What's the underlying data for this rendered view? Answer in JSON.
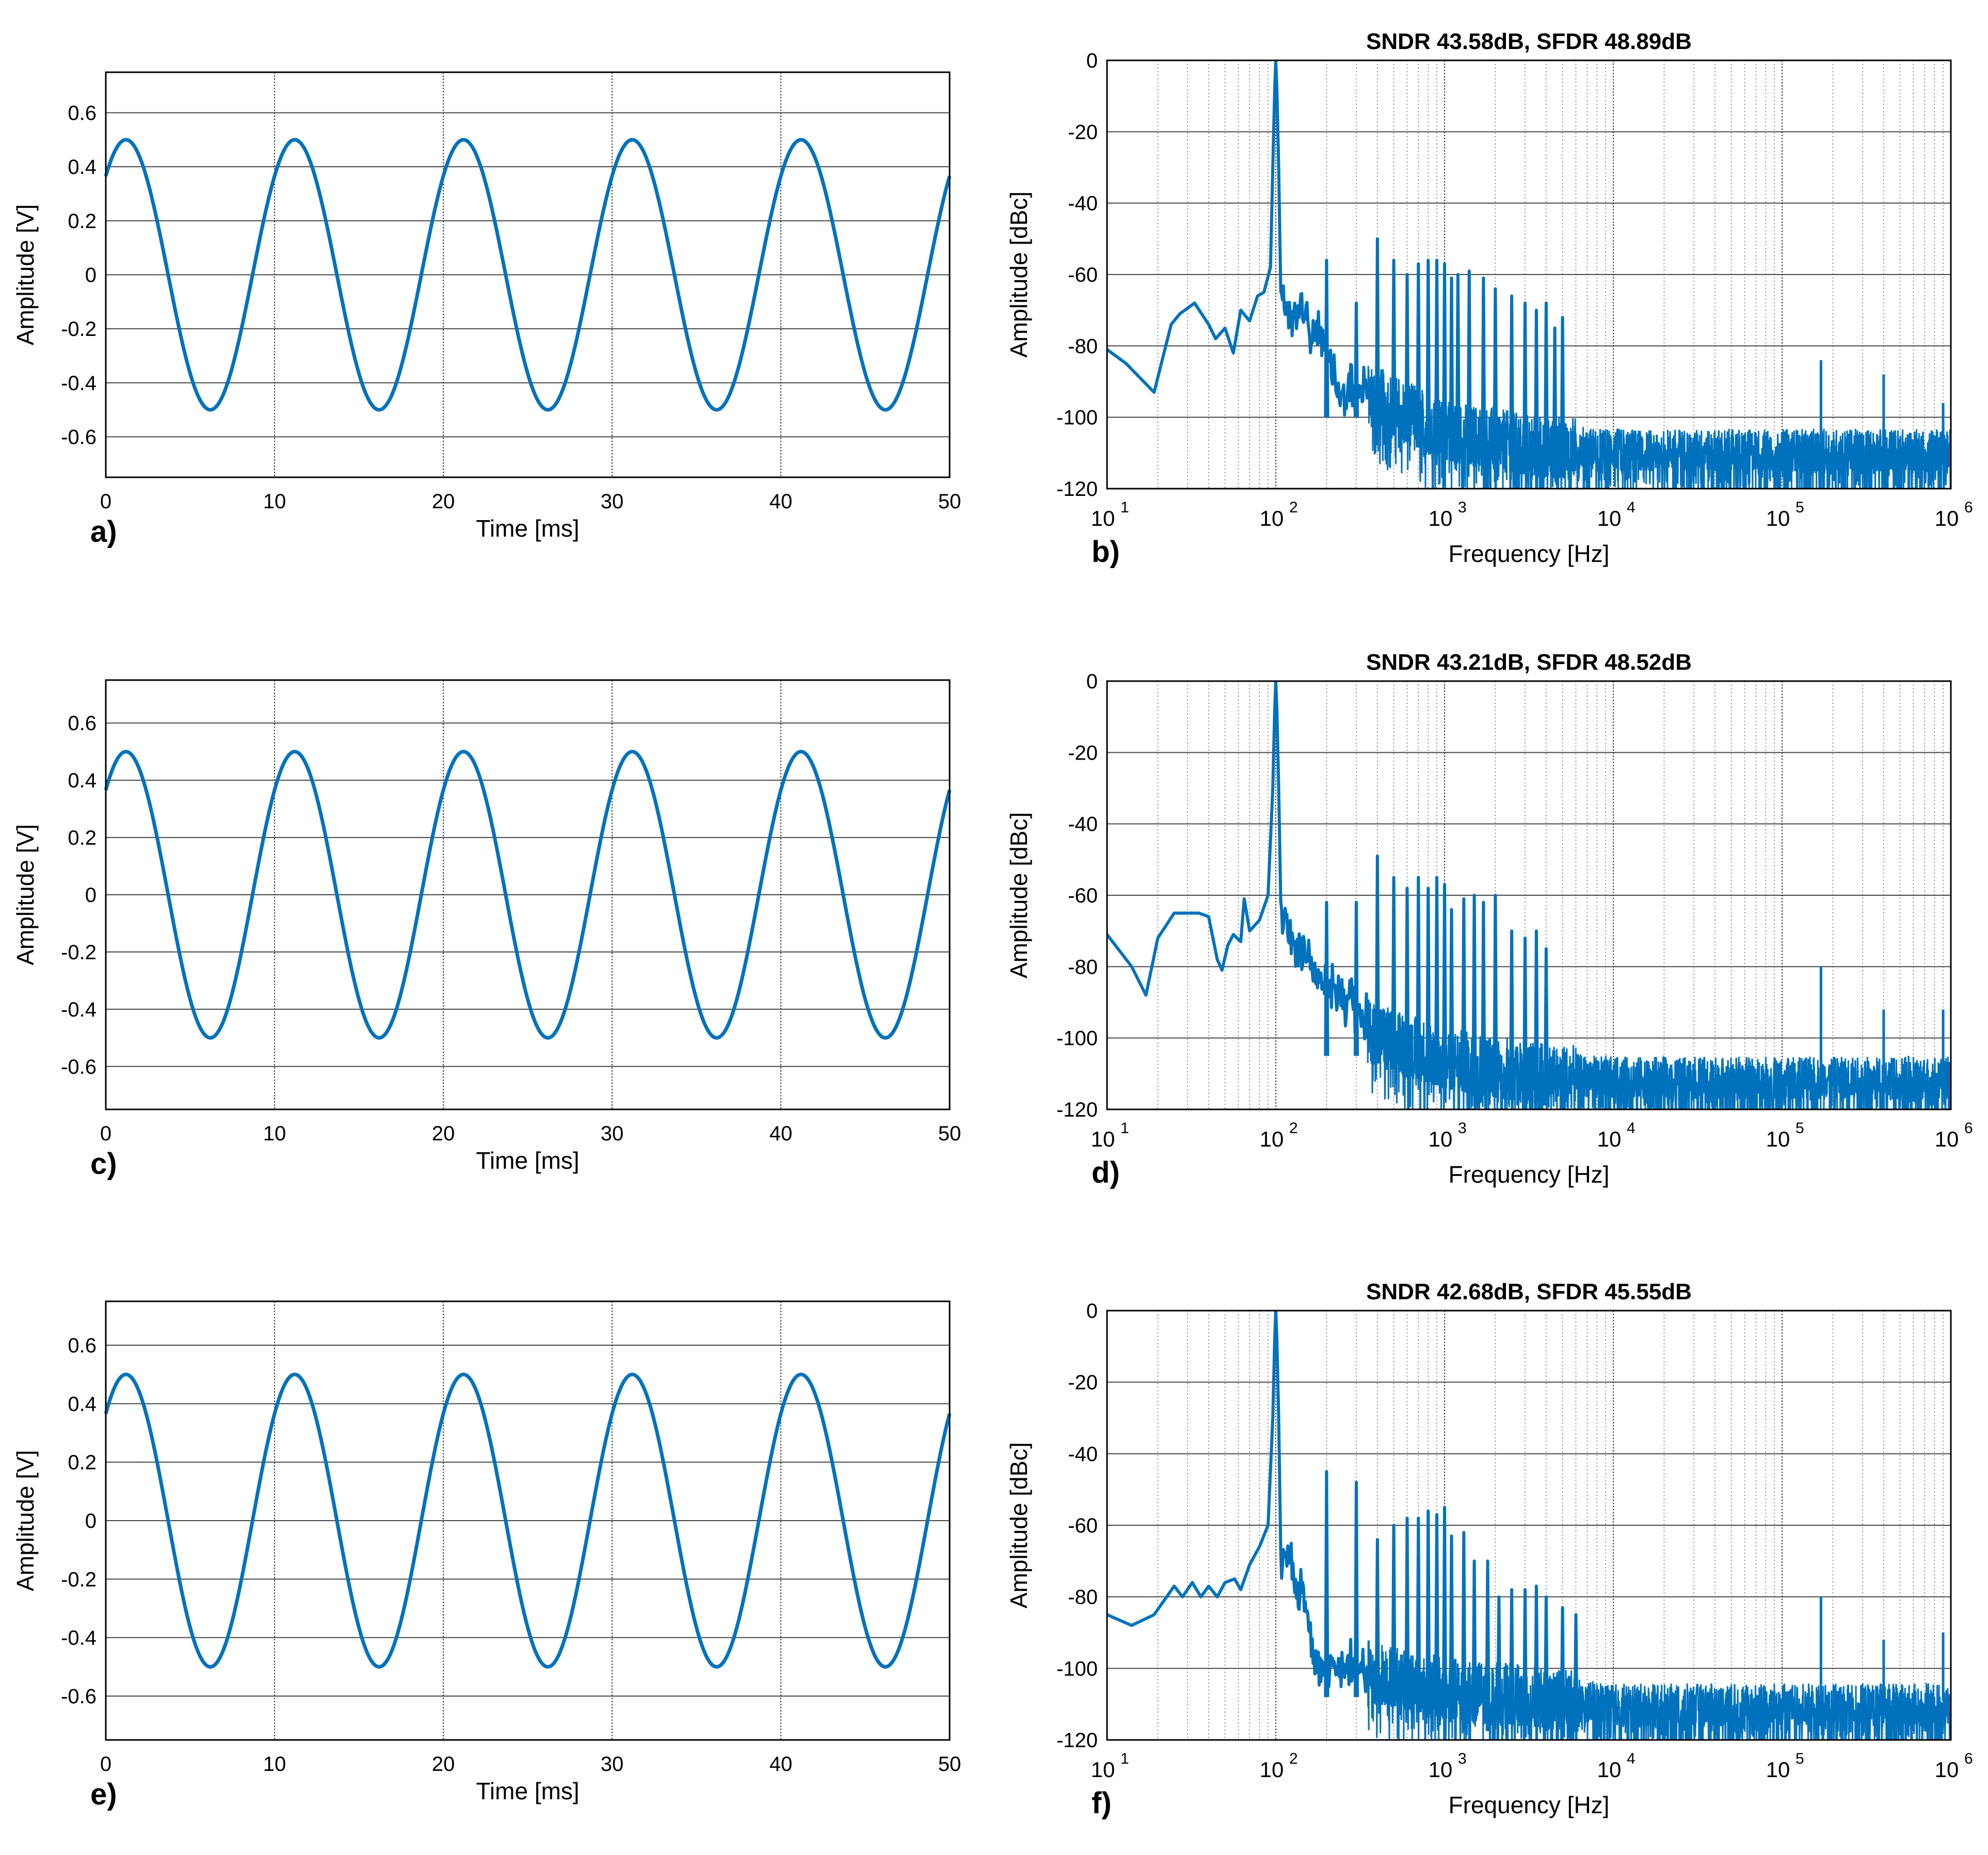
{
  "colors": {
    "line": "#0072bd",
    "grid": "#262626",
    "axis": "#000000",
    "text": "#000000"
  },
  "chart_data": [
    {
      "panel": "a)",
      "type": "line",
      "title": "",
      "xlabel": "Time [ms]",
      "ylabel": "Amplitude [V]",
      "xlim": [
        0,
        50
      ],
      "ylim": [
        -0.75,
        0.75
      ],
      "xticks": [
        0,
        10,
        20,
        30,
        40,
        50
      ],
      "xticklabels": [
        "0",
        "10",
        "20",
        "30",
        "40",
        "50"
      ],
      "yticks": [
        0.6,
        0.4,
        0.2,
        0,
        -0.2,
        -0.4,
        -0.6
      ],
      "yticklabels": [
        "0.6",
        "0.4",
        "0.2",
        "0",
        "-0.2",
        "-0.4",
        "-0.6"
      ],
      "series": [
        {
          "name": "sine",
          "amplitude": 0.5,
          "frequency_hz": 100,
          "phase_deg": 47,
          "x_range_ms": [
            0,
            50
          ]
        }
      ]
    },
    {
      "panel": "b)",
      "type": "line",
      "title": "SNDR 43.58dB, SFDR 48.89dB",
      "xlabel": "Frequency [Hz]",
      "ylabel": "Amplitude [dBc]",
      "xscale": "log",
      "xlim": [
        10,
        1000000
      ],
      "ylim": [
        -120,
        0
      ],
      "xticks": [
        10,
        100,
        1000,
        10000,
        100000,
        1000000
      ],
      "xticklabels": [
        [
          "10",
          "1"
        ],
        [
          "10",
          "2"
        ],
        [
          "10",
          "3"
        ],
        [
          "10",
          "4"
        ],
        [
          "10",
          "5"
        ],
        [
          "10",
          "6"
        ]
      ],
      "yticks": [
        0,
        -20,
        -40,
        -60,
        -80,
        -100,
        -120
      ],
      "yticklabels": [
        "0",
        "-20",
        "-40",
        "-60",
        "-80",
        "-100",
        "-120"
      ],
      "series": [
        {
          "name": "spectrum",
          "low": [
            [
              10,
              -81
            ],
            [
              13,
              -85
            ],
            [
              19,
              -93
            ],
            [
              24,
              -74
            ],
            [
              27,
              -71
            ],
            [
              33,
              -68
            ],
            [
              40,
              -74
            ],
            [
              44,
              -78
            ],
            [
              50,
              -75
            ],
            [
              56,
              -82
            ],
            [
              62,
              -70
            ],
            [
              70,
              -73
            ],
            [
              78,
              -66
            ],
            [
              85,
              -65
            ],
            [
              93,
              -58
            ]
          ],
          "carrier": [
            [
              100,
              0
            ]
          ],
          "shoulder": [
            [
              107,
              -58
            ],
            [
              115,
              -65
            ],
            [
              125,
              -68
            ],
            [
              140,
              -63
            ],
            [
              160,
              -74
            ],
            [
              180,
              -70
            ],
            [
              240,
              -90
            ],
            [
              350,
              -88
            ]
          ],
          "harmonics": [
            [
              200,
              -56
            ],
            [
              300,
              -68
            ],
            [
              400,
              -50
            ],
            [
              500,
              -56
            ],
            [
              600,
              -60
            ],
            [
              700,
              -57
            ],
            [
              800,
              -56
            ],
            [
              900,
              -56
            ],
            [
              1000,
              -57
            ],
            [
              1100,
              -61
            ],
            [
              1200,
              -60
            ],
            [
              1400,
              -59
            ],
            [
              1700,
              -61
            ],
            [
              2000,
              -64
            ],
            [
              2500,
              -66
            ],
            [
              3000,
              -68
            ],
            [
              3500,
              -70
            ],
            [
              4000,
              -68
            ],
            [
              4500,
              -75
            ],
            [
              5000,
              -72
            ]
          ],
          "spurs": [
            [
              170000,
              -84
            ],
            [
              400000,
              -88
            ],
            [
              900000,
              -96
            ]
          ],
          "noise_floor": [
            [
              300,
              -90
            ],
            [
              1000,
              -102
            ],
            [
              3000,
              -106
            ],
            [
              10000,
              -108
            ],
            [
              1000000,
              -108
            ]
          ]
        }
      ]
    },
    {
      "panel": "c)",
      "type": "line",
      "title": "",
      "xlabel": "Time [ms]",
      "ylabel": "Amplitude [V]",
      "xlim": [
        0,
        50
      ],
      "ylim": [
        -0.75,
        0.75
      ],
      "xticks": [
        0,
        10,
        20,
        30,
        40,
        50
      ],
      "xticklabels": [
        "0",
        "10",
        "20",
        "30",
        "40",
        "50"
      ],
      "yticks": [
        0.6,
        0.4,
        0.2,
        0,
        -0.2,
        -0.4,
        -0.6
      ],
      "yticklabels": [
        "0.6",
        "0.4",
        "0.2",
        "0",
        "-0.2",
        "-0.4",
        "-0.6"
      ],
      "series": [
        {
          "name": "sine",
          "amplitude": 0.5,
          "frequency_hz": 100,
          "phase_deg": 47,
          "x_range_ms": [
            0,
            50
          ]
        }
      ]
    },
    {
      "panel": "d)",
      "type": "line",
      "title": "SNDR 43.21dB, SFDR 48.52dB",
      "xlabel": "Frequency [Hz]",
      "ylabel": "Amplitude [dBc]",
      "xscale": "log",
      "xlim": [
        10,
        1000000
      ],
      "ylim": [
        -120,
        0
      ],
      "xticks": [
        10,
        100,
        1000,
        10000,
        100000,
        1000000
      ],
      "xticklabels": [
        [
          "10",
          "1"
        ],
        [
          "10",
          "2"
        ],
        [
          "10",
          "3"
        ],
        [
          "10",
          "4"
        ],
        [
          "10",
          "5"
        ],
        [
          "10",
          "6"
        ]
      ],
      "yticks": [
        0,
        -20,
        -40,
        -60,
        -80,
        -100,
        -120
      ],
      "yticklabels": [
        "0",
        "-20",
        "-40",
        "-60",
        "-80",
        "-100",
        "-120"
      ],
      "series": [
        {
          "name": "spectrum",
          "low": [
            [
              10,
              -71
            ],
            [
              14,
              -80
            ],
            [
              17,
              -88
            ],
            [
              20,
              -72
            ],
            [
              25,
              -65
            ],
            [
              30,
              -65
            ],
            [
              35,
              -65
            ],
            [
              40,
              -66
            ],
            [
              45,
              -78
            ],
            [
              48,
              -81
            ],
            [
              52,
              -74
            ],
            [
              56,
              -71
            ],
            [
              62,
              -73
            ],
            [
              65,
              -61
            ],
            [
              70,
              -70
            ],
            [
              80,
              -67
            ],
            [
              90,
              -60
            ]
          ],
          "carrier": [
            [
              100,
              0
            ]
          ],
          "shoulder": [
            [
              107,
              -60
            ],
            [
              115,
              -63
            ],
            [
              130,
              -70
            ],
            [
              150,
              -72
            ],
            [
              170,
              -80
            ],
            [
              220,
              -84
            ],
            [
              350,
              -92
            ]
          ],
          "harmonics": [
            [
              200,
              -62
            ],
            [
              300,
              -62
            ],
            [
              400,
              -49
            ],
            [
              500,
              -55
            ],
            [
              600,
              -58
            ],
            [
              700,
              -55
            ],
            [
              800,
              -58
            ],
            [
              900,
              -55
            ],
            [
              1000,
              -57
            ],
            [
              1100,
              -64
            ],
            [
              1300,
              -61
            ],
            [
              1500,
              -60
            ],
            [
              1700,
              -62
            ],
            [
              2000,
              -60
            ],
            [
              2500,
              -70
            ],
            [
              3000,
              -72
            ],
            [
              3500,
              -70
            ],
            [
              4000,
              -75
            ]
          ],
          "spurs": [
            [
              170000,
              -80
            ],
            [
              400000,
              -92
            ],
            [
              900000,
              -92
            ]
          ],
          "noise_floor": [
            [
              300,
              -95
            ],
            [
              1000,
              -104
            ],
            [
              3000,
              -108
            ],
            [
              10000,
              -110
            ],
            [
              1000000,
              -110
            ]
          ]
        }
      ]
    },
    {
      "panel": "e)",
      "type": "line",
      "title": "",
      "xlabel": "Time [ms]",
      "ylabel": "Amplitude [V]",
      "xlim": [
        0,
        50
      ],
      "ylim": [
        -0.75,
        0.75
      ],
      "xticks": [
        0,
        10,
        20,
        30,
        40,
        50
      ],
      "xticklabels": [
        "0",
        "10",
        "20",
        "30",
        "40",
        "50"
      ],
      "yticks": [
        0.6,
        0.4,
        0.2,
        0,
        -0.2,
        -0.4,
        -0.6
      ],
      "yticklabels": [
        "0.6",
        "0.4",
        "0.2",
        "0",
        "-0.2",
        "-0.4",
        "-0.6"
      ],
      "series": [
        {
          "name": "sine",
          "amplitude": 0.5,
          "frequency_hz": 100,
          "phase_deg": 47,
          "x_range_ms": [
            0,
            50
          ]
        }
      ]
    },
    {
      "panel": "f)",
      "type": "line",
      "title": "SNDR 42.68dB, SFDR 45.55dB",
      "xlabel": "Frequency [Hz]",
      "ylabel": "Amplitude [dBc]",
      "xscale": "log",
      "xlim": [
        10,
        1000000
      ],
      "ylim": [
        -120,
        0
      ],
      "xticks": [
        10,
        100,
        1000,
        10000,
        100000,
        1000000
      ],
      "xticklabels": [
        [
          "10",
          "1"
        ],
        [
          "10",
          "2"
        ],
        [
          "10",
          "3"
        ],
        [
          "10",
          "4"
        ],
        [
          "10",
          "5"
        ],
        [
          "10",
          "6"
        ]
      ],
      "yticks": [
        0,
        -20,
        -40,
        -60,
        -80,
        -100,
        -120
      ],
      "yticklabels": [
        "0",
        "-20",
        "-40",
        "-60",
        "-80",
        "-100",
        "-120"
      ],
      "series": [
        {
          "name": "spectrum",
          "low": [
            [
              10,
              -85
            ],
            [
              14,
              -88
            ],
            [
              19,
              -85
            ],
            [
              25,
              -77
            ],
            [
              28,
              -80
            ],
            [
              32,
              -76
            ],
            [
              36,
              -80
            ],
            [
              40,
              -77
            ],
            [
              45,
              -80
            ],
            [
              50,
              -76
            ],
            [
              57,
              -75
            ],
            [
              62,
              -78
            ],
            [
              70,
              -71
            ],
            [
              80,
              -66
            ],
            [
              90,
              -60
            ]
          ],
          "carrier": [
            [
              100,
              0
            ]
          ],
          "shoulder": [
            [
              107,
              -65
            ],
            [
              120,
              -66
            ],
            [
              140,
              -75
            ],
            [
              160,
              -87
            ],
            [
              180,
              -96
            ],
            [
              230,
              -95
            ],
            [
              350,
              -98
            ]
          ],
          "harmonics": [
            [
              200,
              -45
            ],
            [
              300,
              -48
            ],
            [
              400,
              -64
            ],
            [
              500,
              -60
            ],
            [
              600,
              -58
            ],
            [
              700,
              -58
            ],
            [
              800,
              -56
            ],
            [
              900,
              -57
            ],
            [
              1000,
              -55
            ],
            [
              1100,
              -63
            ],
            [
              1300,
              -62
            ],
            [
              1500,
              -70
            ],
            [
              1800,
              -70
            ],
            [
              2100,
              -80
            ],
            [
              2500,
              -78
            ],
            [
              3000,
              -78
            ],
            [
              3500,
              -77
            ],
            [
              4000,
              -80
            ],
            [
              5000,
              -83
            ],
            [
              6000,
              -85
            ]
          ],
          "spurs": [
            [
              170000,
              -80
            ],
            [
              400000,
              -92
            ],
            [
              900000,
              -90
            ]
          ],
          "noise_floor": [
            [
              300,
              -98
            ],
            [
              1000,
              -104
            ],
            [
              3000,
              -106
            ],
            [
              10000,
              -109
            ],
            [
              1000000,
              -109
            ]
          ]
        }
      ]
    }
  ]
}
